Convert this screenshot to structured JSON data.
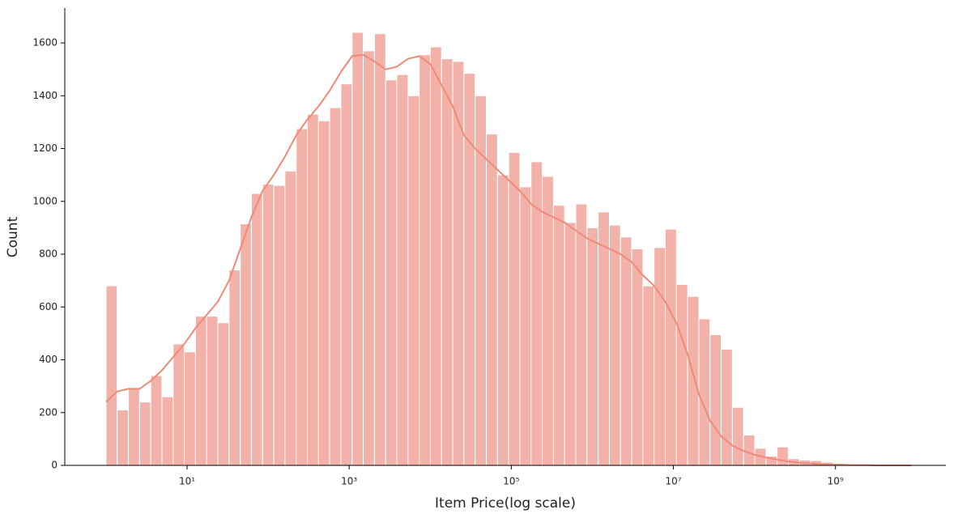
{
  "chart_data": {
    "type": "histogram",
    "x_label": "Item Price(log scale)",
    "y_label": "Count",
    "x_scale": "log",
    "color": "#f3b2a9",
    "line_color": "#ee8a78",
    "xlim": [
      0.31,
      23000000000
    ],
    "ylim": [
      0,
      1732
    ],
    "xticks": [
      {
        "value": 10,
        "label": "10¹"
      },
      {
        "value": 1000,
        "label": "10³"
      },
      {
        "value": 100000,
        "label": "10⁵"
      },
      {
        "value": 10000000,
        "label": "10⁷"
      },
      {
        "value": 1000000000,
        "label": "10⁹"
      }
    ],
    "yticks": [
      0,
      200,
      400,
      600,
      800,
      1000,
      1200,
      1400,
      1600
    ],
    "bins": [
      1,
      1.374,
      1.888,
      2.594,
      3.565,
      4.898,
      6.73,
      9.247,
      12.71,
      17.46,
      23.99,
      32.96,
      45.29,
      62.23,
      85.51,
      117.5,
      161.4,
      221.8,
      304.8,
      418.8,
      575.4,
      790.7,
      1086,
      1493,
      2051,
      2818,
      3873,
      5321,
      7311,
      10050,
      13800,
      18970,
      26060,
      35810,
      49200,
      67610,
      92900,
      127600,
      175400,
      241000,
      331100,
      455000,
      625200,
      859000,
      1180000,
      1622000,
      2228000,
      3062000,
      4207000,
      5781000,
      7943000,
      10910000,
      15000000,
      20610000,
      28310000,
      38900000,
      53460000,
      73450000,
      100900000,
      138700000,
      190500000,
      261800000,
      359700000,
      494300000,
      679200000,
      933300000,
      1282000000,
      1762000000,
      2421000000,
      3327000000,
      4571000000,
      6281000000,
      8630000000
    ],
    "counts": [
      680,
      210,
      290,
      240,
      340,
      260,
      460,
      430,
      565,
      565,
      540,
      740,
      915,
      1030,
      1065,
      1060,
      1115,
      1275,
      1330,
      1305,
      1355,
      1445,
      1640,
      1570,
      1635,
      1460,
      1480,
      1400,
      1555,
      1585,
      1540,
      1530,
      1485,
      1400,
      1255,
      1100,
      1185,
      1055,
      1150,
      1095,
      985,
      920,
      990,
      900,
      960,
      910,
      865,
      820,
      680,
      825,
      895,
      685,
      640,
      555,
      495,
      440,
      220,
      115,
      65,
      35,
      70,
      25,
      20,
      18,
      12,
      8,
      5,
      3,
      2,
      1,
      1,
      1
    ],
    "kde": [
      240,
      280,
      290,
      290,
      320,
      360,
      410,
      460,
      520,
      570,
      620,
      700,
      820,
      940,
      1040,
      1100,
      1170,
      1250,
      1310,
      1360,
      1420,
      1490,
      1550,
      1555,
      1530,
      1500,
      1510,
      1540,
      1550,
      1520,
      1440,
      1360,
      1250,
      1200,
      1160,
      1120,
      1080,
      1040,
      990,
      960,
      940,
      920,
      890,
      860,
      840,
      820,
      800,
      770,
      720,
      680,
      620,
      540,
      420,
      270,
      170,
      110,
      75,
      55,
      40,
      30,
      22,
      15,
      10,
      7,
      5,
      3,
      2,
      1,
      1,
      0,
      0,
      0,
      0
    ]
  }
}
